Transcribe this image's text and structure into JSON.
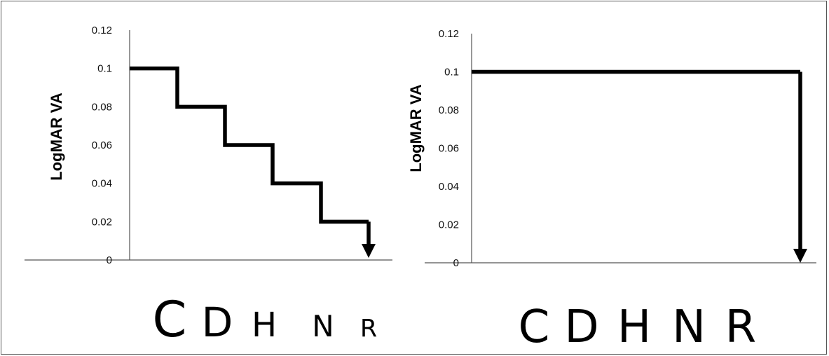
{
  "chart_data": [
    {
      "type": "line",
      "ylabel": "LogMAR VA",
      "ylim": [
        0,
        0.12
      ],
      "yticks": [
        "0.12",
        "0.1",
        "0.08",
        "0.06",
        "0.04",
        "0.02",
        "0"
      ],
      "categories": [
        "C",
        "D",
        "H",
        "N",
        "R"
      ],
      "series": [
        {
          "values": [
            0.1,
            0.08,
            0.06,
            0.04,
            0.02
          ]
        }
      ],
      "end_arrow": "down",
      "line_color": "#000000"
    },
    {
      "type": "line",
      "ylabel": "LogMAR VA",
      "ylim": [
        0,
        0.12
      ],
      "yticks": [
        "0.12",
        "0.1",
        "0.08",
        "0.06",
        "0.04",
        "0.02",
        "0"
      ],
      "categories": [
        "C",
        "D",
        "H",
        "N",
        "R"
      ],
      "series": [
        {
          "values": [
            0.1,
            0.1,
            0.1,
            0.1,
            0.1
          ]
        }
      ],
      "end_arrow": "down",
      "line_color": "#000000"
    }
  ]
}
